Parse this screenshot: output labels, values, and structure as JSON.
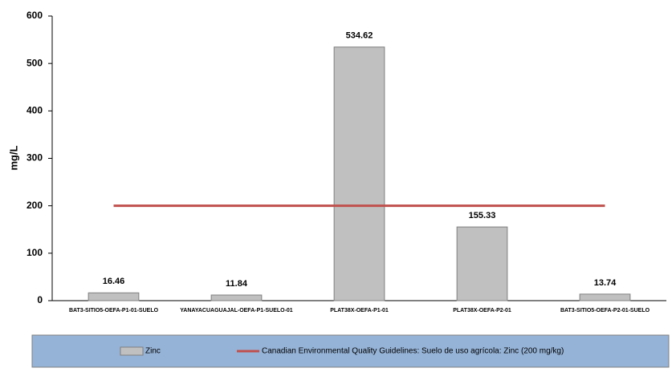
{
  "chart_data": {
    "type": "bar",
    "y_label": "mg/L",
    "categories": [
      "BAT3-SITIO5-OEFA-P1-01-SUELO",
      "YANAYACUAGUAJAL-OEFA-P1-SUELO-01",
      "PLAT38X-OEFA-P1-01",
      "PLAT38X-OEFA-P2-01",
      "BAT3-SITIO5-OEFA-P2-01-SUELO"
    ],
    "series": [
      {
        "name": "Zinc",
        "type": "bar",
        "color": "#c0c0c0",
        "values": [
          16.46,
          11.84,
          534.62,
          155.33,
          13.74
        ]
      },
      {
        "name": "Canadian Environmental Quality Guidelines: Suelo de uso agrícola: Zinc (200 mg/kg)",
        "type": "line",
        "color": "#c0504d",
        "values": [
          200,
          200,
          200,
          200,
          200
        ]
      }
    ],
    "ylim": [
      0,
      600
    ],
    "yticks": [
      0,
      100,
      200,
      300,
      400,
      500,
      600
    ],
    "grid": false,
    "legend": "bottom",
    "data_labels": true
  }
}
